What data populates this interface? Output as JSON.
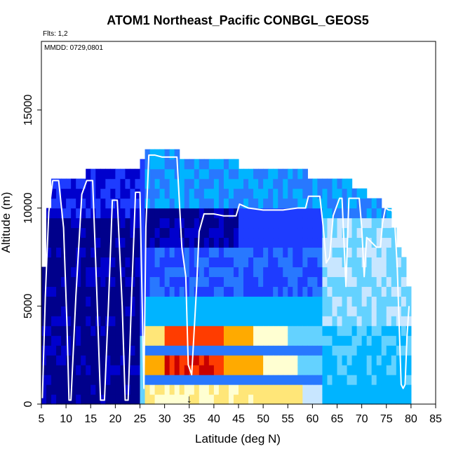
{
  "chart_data": {
    "type": "heatmap",
    "title": "ATOM1 Northeast_Pacific CONBGL_GEOS5",
    "flights_label": "Flts: 1,2",
    "dates_label": "MMDD: 0729,0801",
    "xlabel": "Latitude (deg N)",
    "ylabel": "Altitude (m)",
    "xlim": [
      5,
      85
    ],
    "ylim": [
      0,
      18500
    ],
    "x_ticks": [
      5,
      10,
      15,
      20,
      25,
      30,
      35,
      40,
      45,
      50,
      55,
      60,
      65,
      70,
      75,
      80,
      85
    ],
    "y_ticks": [
      0,
      5000,
      10000,
      15000
    ],
    "colorscale": [
      "#00008b",
      "#0000cd",
      "#1e3cff",
      "#2878ff",
      "#00b4ff",
      "#64d2ff",
      "#c8e6ff",
      "#ffffd2",
      "#ffe678",
      "#ffaa00",
      "#ff3c00",
      "#c80000"
    ],
    "columns": [
      {
        "lat": 5.5,
        "top": 7000,
        "profile": "deep"
      },
      {
        "lat": 6.5,
        "top": 10000,
        "profile": "deep"
      },
      {
        "lat": 7.5,
        "top": 11500,
        "profile": "deep"
      },
      {
        "lat": 8.5,
        "top": 11500,
        "profile": "deep"
      },
      {
        "lat": 9.5,
        "top": 11500,
        "profile": "deep"
      },
      {
        "lat": 10.5,
        "top": 11500,
        "profile": "deep"
      },
      {
        "lat": 11.5,
        "top": 11500,
        "profile": "deep"
      },
      {
        "lat": 12.5,
        "top": 11500,
        "profile": "deep"
      },
      {
        "lat": 13.5,
        "top": 11500,
        "profile": "deep"
      },
      {
        "lat": 14.5,
        "top": 12000,
        "profile": "deep"
      },
      {
        "lat": 15.5,
        "top": 12000,
        "profile": "deep"
      },
      {
        "lat": 16.5,
        "top": 12000,
        "profile": "deep"
      },
      {
        "lat": 17.5,
        "top": 12000,
        "profile": "deep"
      },
      {
        "lat": 18.5,
        "top": 12000,
        "profile": "deep"
      },
      {
        "lat": 19.5,
        "top": 12000,
        "profile": "deep"
      },
      {
        "lat": 20.5,
        "top": 12000,
        "profile": "deep"
      },
      {
        "lat": 21.5,
        "top": 12000,
        "profile": "deep"
      },
      {
        "lat": 22.5,
        "top": 12000,
        "profile": "deep"
      },
      {
        "lat": 23.5,
        "top": 12000,
        "profile": "deep"
      },
      {
        "lat": 24.5,
        "top": 12000,
        "profile": "deep"
      },
      {
        "lat": 25.5,
        "top": 12500,
        "profile": "transition"
      },
      {
        "lat": 26.5,
        "top": 13000,
        "profile": "plume"
      },
      {
        "lat": 27.5,
        "top": 13000,
        "profile": "plume"
      },
      {
        "lat": 28.5,
        "top": 13000,
        "profile": "plume"
      },
      {
        "lat": 29.5,
        "top": 13000,
        "profile": "plume"
      },
      {
        "lat": 30.5,
        "top": 13000,
        "profile": "plume"
      },
      {
        "lat": 31.5,
        "top": 13000,
        "profile": "plume"
      },
      {
        "lat": 32.5,
        "top": 13000,
        "profile": "plume"
      },
      {
        "lat": 33.5,
        "top": 12500,
        "profile": "plume"
      },
      {
        "lat": 34.5,
        "top": 12500,
        "profile": "plume"
      },
      {
        "lat": 35.5,
        "top": 12500,
        "profile": "plume"
      },
      {
        "lat": 36.5,
        "top": 12500,
        "profile": "plume"
      },
      {
        "lat": 37.5,
        "top": 12500,
        "profile": "plume"
      },
      {
        "lat": 38.5,
        "top": 12500,
        "profile": "plume"
      },
      {
        "lat": 39.5,
        "top": 12500,
        "profile": "plume"
      },
      {
        "lat": 40.5,
        "top": 12500,
        "profile": "plume"
      },
      {
        "lat": 41.5,
        "top": 12500,
        "profile": "plume"
      },
      {
        "lat": 42.5,
        "top": 12500,
        "profile": "plume"
      },
      {
        "lat": 43.5,
        "top": 12500,
        "profile": "plume"
      },
      {
        "lat": 44.5,
        "top": 12500,
        "profile": "plume"
      },
      {
        "lat": 45.5,
        "top": 12000,
        "profile": "plume"
      },
      {
        "lat": 46.5,
        "top": 12000,
        "profile": "plume"
      },
      {
        "lat": 47.5,
        "top": 12000,
        "profile": "plume"
      },
      {
        "lat": 48.5,
        "top": 12000,
        "profile": "plume"
      },
      {
        "lat": 49.5,
        "top": 12000,
        "profile": "plume"
      },
      {
        "lat": 50.5,
        "top": 12000,
        "profile": "plume"
      },
      {
        "lat": 51.5,
        "top": 12000,
        "profile": "plume"
      },
      {
        "lat": 52.5,
        "top": 12000,
        "profile": "plume"
      },
      {
        "lat": 53.5,
        "top": 12000,
        "profile": "plume"
      },
      {
        "lat": 54.5,
        "top": 12000,
        "profile": "plume"
      },
      {
        "lat": 55.5,
        "top": 12000,
        "profile": "plume"
      },
      {
        "lat": 56.5,
        "top": 12000,
        "profile": "plume"
      },
      {
        "lat": 57.5,
        "top": 12000,
        "profile": "plume"
      },
      {
        "lat": 58.5,
        "top": 12000,
        "profile": "plume"
      },
      {
        "lat": 59.5,
        "top": 11500,
        "profile": "plume"
      },
      {
        "lat": 60.5,
        "top": 11500,
        "profile": "plume"
      },
      {
        "lat": 61.5,
        "top": 11500,
        "profile": "plume"
      },
      {
        "lat": 62.5,
        "top": 11500,
        "profile": "north"
      },
      {
        "lat": 63.5,
        "top": 11500,
        "profile": "north"
      },
      {
        "lat": 64.5,
        "top": 11500,
        "profile": "north"
      },
      {
        "lat": 65.5,
        "top": 11500,
        "profile": "north"
      },
      {
        "lat": 66.5,
        "top": 11500,
        "profile": "north"
      },
      {
        "lat": 67.5,
        "top": 11500,
        "profile": "north"
      },
      {
        "lat": 68.5,
        "top": 11000,
        "profile": "north"
      },
      {
        "lat": 69.5,
        "top": 11000,
        "profile": "north"
      },
      {
        "lat": 70.5,
        "top": 11000,
        "profile": "north"
      },
      {
        "lat": 71.5,
        "top": 10500,
        "profile": "north"
      },
      {
        "lat": 72.5,
        "top": 10500,
        "profile": "north"
      },
      {
        "lat": 73.5,
        "top": 10500,
        "profile": "north"
      },
      {
        "lat": 74.5,
        "top": 10000,
        "profile": "north"
      },
      {
        "lat": 75.5,
        "top": 10000,
        "profile": "north"
      },
      {
        "lat": 76.5,
        "top": 9000,
        "profile": "north"
      },
      {
        "lat": 77.5,
        "top": 8000,
        "profile": "north"
      },
      {
        "lat": 78.5,
        "top": 7500,
        "profile": "north"
      },
      {
        "lat": 79.5,
        "top": 6000,
        "profile": "north"
      }
    ],
    "flight_track": {
      "x": [
        5.2,
        5.8,
        6.5,
        7.3,
        8.5,
        9.5,
        10.2,
        10.6,
        11.0,
        12.0,
        13.2,
        14.2,
        15.4,
        16.2,
        17.0,
        17.8,
        18.6,
        19.4,
        20.4,
        21.4,
        22.0,
        22.6,
        23.3,
        24.1,
        25.0,
        25.8,
        26.2,
        26.8,
        28.0,
        29.5,
        31.0,
        32.5,
        33.5,
        34.3,
        34.8,
        35.5,
        36.5,
        37.0,
        38.0,
        40.0,
        42.0,
        44.5,
        45.2,
        47.0,
        50.0,
        52.0,
        54.0,
        57.0,
        58.6,
        59.2,
        61.5,
        62.2,
        62.8,
        63.5,
        64.2,
        65.5,
        66.0,
        66.8,
        67.4,
        68.0,
        69.5,
        70.0,
        70.5,
        71.0,
        73.0,
        73.8,
        74.2,
        74.8,
        75.5,
        76.0,
        76.6,
        77.2,
        77.6,
        78.0,
        78.4,
        78.8,
        79.2,
        79.6
      ],
      "y": [
        300,
        5500,
        9800,
        11400,
        11400,
        9000,
        4000,
        200,
        200,
        5500,
        10700,
        11400,
        11400,
        6000,
        200,
        200,
        5000,
        10400,
        10400,
        5000,
        200,
        200,
        5500,
        10800,
        10800,
        800,
        9000,
        12700,
        12700,
        12600,
        12600,
        12600,
        8000,
        6500,
        2000,
        1500,
        6000,
        8800,
        9700,
        9700,
        9600,
        9600,
        10200,
        10000,
        9900,
        9900,
        9900,
        10000,
        10000,
        10600,
        10600,
        9000,
        7200,
        7500,
        9600,
        10500,
        10500,
        6000,
        10500,
        10500,
        10500,
        9000,
        6500,
        8500,
        8000,
        8000,
        9200,
        10000,
        9900,
        9900,
        9700,
        7000,
        4000,
        1000,
        800,
        1000,
        3500,
        5000
      ]
    },
    "marker": {
      "x": 35,
      "label": "↓"
    }
  }
}
